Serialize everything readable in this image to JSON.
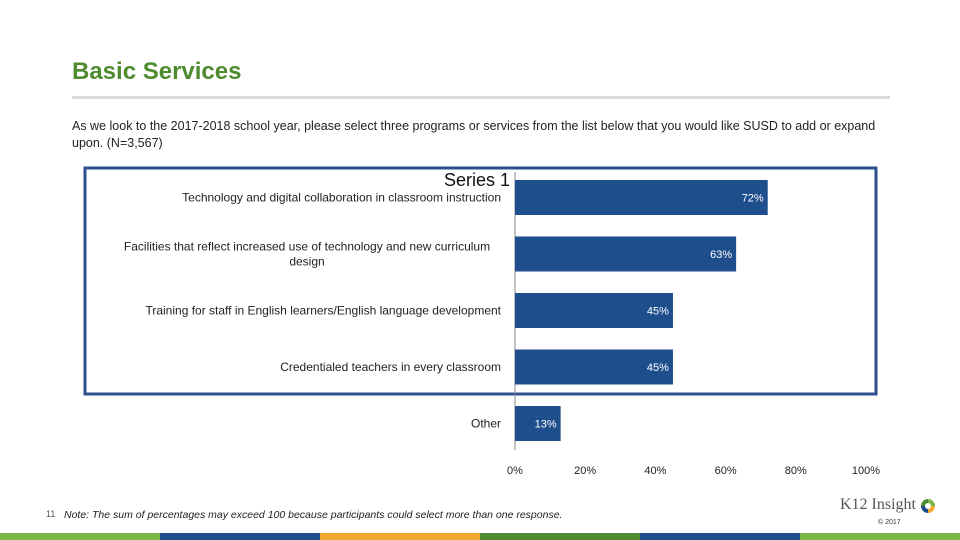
{
  "page": {
    "title": "Basic Services",
    "question": "As we look to the 2017-2018 school year, please select three programs or services from the list below that you would like SUSD to add or expand upon. (N=3,567)",
    "note": "Note: The sum of percentages may exceed 100 because participants could select more than one response.",
    "page_number": "11",
    "logo_text": "K12 Insight",
    "copyright": "© 2017"
  },
  "colors": {
    "title": "#4d8b2e",
    "bar": "#1f4e8c",
    "highlight_box": "#2e4f8f",
    "footer_bar": [
      "#7ab648",
      "#1f4e8c",
      "#f0a830",
      "#4d8b2e",
      "#1f4e8c",
      "#7ab648"
    ]
  },
  "icons": {
    "logo_mark": "k12-insight-logo-icon"
  },
  "chart_data": {
    "type": "bar",
    "orientation": "horizontal",
    "title": "Series 1",
    "categories": [
      "Technology and digital collaboration in classroom instruction",
      "Facilities that reflect increased use of technology and new curriculum design",
      "Training for staff in English learners/English language development",
      "Credentialed teachers in every classroom",
      "Other"
    ],
    "values": [
      72,
      63,
      45,
      45,
      13
    ],
    "data_labels": [
      "72%",
      "63%",
      "45%",
      "45%",
      "13%"
    ],
    "xlim": [
      0,
      100
    ],
    "x_ticks": [
      "0%",
      "20%",
      "40%",
      "60%",
      "80%",
      "100%"
    ],
    "grid": false,
    "legend": "none"
  }
}
